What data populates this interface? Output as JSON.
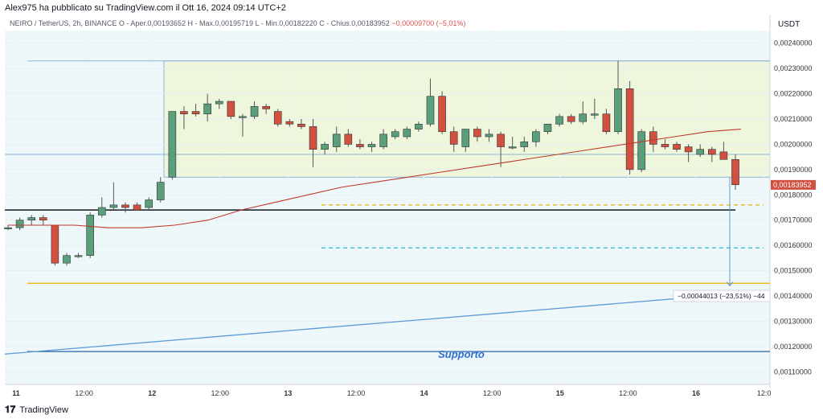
{
  "header": {
    "published_by": "Alex975 ha pubblicato su TradingView.com il Ott 16, 2024 09:14 UTC+2",
    "symbol": "NEIRO / TetherUS, 2h, BINANCE",
    "ohlc": "O - Aper.0,00193652  H - Max.0,00195719  L - Min.0,00182220  C - Chius.0,00183952",
    "change": "−0,00009700 (−5,01%)"
  },
  "price_axis": {
    "currency": "USDT",
    "labels": [
      "0,00240000",
      "0,00230000",
      "0,00220000",
      "0,00210000",
      "0,00200000",
      "0,00190000",
      "0,00180000",
      "0,00170000",
      "0,00160000",
      "0,00150000",
      "0,00140000",
      "0,00130000",
      "0,00120000",
      "0,00110000"
    ],
    "current_price": "0,00183952"
  },
  "time_axis": {
    "labels": [
      "11",
      "12:00",
      "12",
      "12:00",
      "13",
      "12:00",
      "14",
      "12:00",
      "15",
      "12:00",
      "16",
      "12:0"
    ]
  },
  "annotations": {
    "support_label": "Supporto",
    "measure_label": "−0,00044013 (−23,51%) −44"
  },
  "colors": {
    "up": "#5a9e7b",
    "down": "#d2503f",
    "ma": "#c0392b",
    "range_fill": "#eef7dc",
    "bg_fill": "#eef8fb"
  },
  "footer": {
    "brand": "TradingView"
  },
  "chart_data": {
    "type": "candlestick",
    "interval": "2h",
    "ylim": [
      0.00105,
      0.00245
    ],
    "candles": [
      {
        "o": 0.00167,
        "h": 0.00168,
        "l": 0.00166,
        "c": 0.00167
      },
      {
        "o": 0.00167,
        "h": 0.00171,
        "l": 0.00166,
        "c": 0.0017
      },
      {
        "o": 0.0017,
        "h": 0.00172,
        "l": 0.00168,
        "c": 0.00171
      },
      {
        "o": 0.00171,
        "h": 0.00172,
        "l": 0.00168,
        "c": 0.0017
      },
      {
        "o": 0.00168,
        "h": 0.00168,
        "l": 0.00152,
        "c": 0.00153
      },
      {
        "o": 0.00153,
        "h": 0.00157,
        "l": 0.00152,
        "c": 0.00156
      },
      {
        "o": 0.00156,
        "h": 0.00157,
        "l": 0.00155,
        "c": 0.00156
      },
      {
        "o": 0.00156,
        "h": 0.00173,
        "l": 0.00155,
        "c": 0.00172
      },
      {
        "o": 0.00172,
        "h": 0.00179,
        "l": 0.00171,
        "c": 0.00175
      },
      {
        "o": 0.00175,
        "h": 0.00185,
        "l": 0.00174,
        "c": 0.00176
      },
      {
        "o": 0.00176,
        "h": 0.00177,
        "l": 0.00173,
        "c": 0.00175
      },
      {
        "o": 0.00176,
        "h": 0.00177,
        "l": 0.00174,
        "c": 0.00174
      },
      {
        "o": 0.00175,
        "h": 0.00179,
        "l": 0.00174,
        "c": 0.00178
      },
      {
        "o": 0.00178,
        "h": 0.00187,
        "l": 0.00177,
        "c": 0.00185
      },
      {
        "o": 0.00187,
        "h": 0.00213,
        "l": 0.00186,
        "c": 0.00213
      },
      {
        "o": 0.00213,
        "h": 0.00215,
        "l": 0.00206,
        "c": 0.00212
      },
      {
        "o": 0.00213,
        "h": 0.00216,
        "l": 0.00211,
        "c": 0.00212
      },
      {
        "o": 0.00212,
        "h": 0.0022,
        "l": 0.00209,
        "c": 0.00216
      },
      {
        "o": 0.00216,
        "h": 0.00218,
        "l": 0.00214,
        "c": 0.00217
      },
      {
        "o": 0.00217,
        "h": 0.00217,
        "l": 0.0021,
        "c": 0.00211
      },
      {
        "o": 0.00211,
        "h": 0.00212,
        "l": 0.00203,
        "c": 0.00211
      },
      {
        "o": 0.00211,
        "h": 0.00217,
        "l": 0.0021,
        "c": 0.00215
      },
      {
        "o": 0.00215,
        "h": 0.00216,
        "l": 0.00212,
        "c": 0.00214
      },
      {
        "o": 0.00213,
        "h": 0.00214,
        "l": 0.00207,
        "c": 0.00208
      },
      {
        "o": 0.00209,
        "h": 0.0021,
        "l": 0.00207,
        "c": 0.00208
      },
      {
        "o": 0.00208,
        "h": 0.0021,
        "l": 0.00206,
        "c": 0.00207
      },
      {
        "o": 0.00207,
        "h": 0.0021,
        "l": 0.00191,
        "c": 0.00198
      },
      {
        "o": 0.00198,
        "h": 0.00201,
        "l": 0.00196,
        "c": 0.002
      },
      {
        "o": 0.00199,
        "h": 0.00207,
        "l": 0.00197,
        "c": 0.00204
      },
      {
        "o": 0.00204,
        "h": 0.00206,
        "l": 0.00199,
        "c": 0.002
      },
      {
        "o": 0.002,
        "h": 0.00202,
        "l": 0.00198,
        "c": 0.00199
      },
      {
        "o": 0.00199,
        "h": 0.00201,
        "l": 0.00197,
        "c": 0.002
      },
      {
        "o": 0.00199,
        "h": 0.00206,
        "l": 0.00198,
        "c": 0.00204
      },
      {
        "o": 0.00203,
        "h": 0.00206,
        "l": 0.00202,
        "c": 0.00205
      },
      {
        "o": 0.00203,
        "h": 0.00207,
        "l": 0.00202,
        "c": 0.00206
      },
      {
        "o": 0.00206,
        "h": 0.00209,
        "l": 0.00205,
        "c": 0.00208
      },
      {
        "o": 0.00208,
        "h": 0.00226,
        "l": 0.00207,
        "c": 0.00219
      },
      {
        "o": 0.00219,
        "h": 0.00221,
        "l": 0.00204,
        "c": 0.00205
      },
      {
        "o": 0.00205,
        "h": 0.00207,
        "l": 0.00197,
        "c": 0.002
      },
      {
        "o": 0.00199,
        "h": 0.00206,
        "l": 0.00197,
        "c": 0.00206
      },
      {
        "o": 0.00206,
        "h": 0.00207,
        "l": 0.00201,
        "c": 0.00203
      },
      {
        "o": 0.00203,
        "h": 0.00206,
        "l": 0.00201,
        "c": 0.00204
      },
      {
        "o": 0.00204,
        "h": 0.00205,
        "l": 0.00191,
        "c": 0.00199
      },
      {
        "o": 0.00199,
        "h": 0.00203,
        "l": 0.00198,
        "c": 0.00199
      },
      {
        "o": 0.00199,
        "h": 0.00203,
        "l": 0.00197,
        "c": 0.00201
      },
      {
        "o": 0.00201,
        "h": 0.00206,
        "l": 0.00199,
        "c": 0.00205
      },
      {
        "o": 0.00205,
        "h": 0.00208,
        "l": 0.00204,
        "c": 0.00208
      },
      {
        "o": 0.00208,
        "h": 0.00212,
        "l": 0.00207,
        "c": 0.00211
      },
      {
        "o": 0.00211,
        "h": 0.00212,
        "l": 0.00208,
        "c": 0.00209
      },
      {
        "o": 0.00209,
        "h": 0.00217,
        "l": 0.00208,
        "c": 0.00212
      },
      {
        "o": 0.00212,
        "h": 0.00218,
        "l": 0.0021,
        "c": 0.00212
      },
      {
        "o": 0.00212,
        "h": 0.00214,
        "l": 0.00204,
        "c": 0.00205
      },
      {
        "o": 0.00205,
        "h": 0.00233,
        "l": 0.00204,
        "c": 0.00222
      },
      {
        "o": 0.00222,
        "h": 0.00225,
        "l": 0.00188,
        "c": 0.0019
      },
      {
        "o": 0.0019,
        "h": 0.00206,
        "l": 0.00189,
        "c": 0.00205
      },
      {
        "o": 0.00205,
        "h": 0.00207,
        "l": 0.00197,
        "c": 0.002
      },
      {
        "o": 0.002,
        "h": 0.00202,
        "l": 0.00198,
        "c": 0.00199
      },
      {
        "o": 0.002,
        "h": 0.00201,
        "l": 0.00197,
        "c": 0.00198
      },
      {
        "o": 0.00199,
        "h": 0.002,
        "l": 0.00193,
        "c": 0.00197
      },
      {
        "o": 0.00196,
        "h": 0.002,
        "l": 0.00195,
        "c": 0.00198
      },
      {
        "o": 0.00198,
        "h": 0.00199,
        "l": 0.00193,
        "c": 0.00196
      },
      {
        "o": 0.00197,
        "h": 0.00201,
        "l": 0.00194,
        "c": 0.00194
      },
      {
        "o": 0.00194,
        "h": 0.00196,
        "l": 0.00182,
        "c": 0.00184
      }
    ],
    "moving_average": [
      0.00168,
      0.00168,
      0.00168,
      0.00167,
      0.00167,
      0.00168,
      0.0017,
      0.00174,
      0.00177,
      0.0018,
      0.00183,
      0.00185,
      0.00187,
      0.00189,
      0.00191,
      0.00193,
      0.00195,
      0.00197,
      0.00199,
      0.00201,
      0.00203,
      0.00205,
      0.00206
    ],
    "horizontal_lines": [
      {
        "price": 0.00174,
        "style": "solid",
        "color": "#131722"
      },
      {
        "price": 0.00145,
        "style": "solid",
        "color": "#f0b000"
      },
      {
        "price": 0.00176,
        "style": "dashed",
        "color": "#f0b000"
      },
      {
        "price": 0.00159,
        "style": "dashed",
        "color": "#26b5d4"
      },
      {
        "price": 0.00118,
        "style": "solid",
        "color": "#2962a8"
      }
    ],
    "range_box": {
      "top": 0.00233,
      "bottom": 0.00187
    },
    "trendline": {
      "from": 0.00117,
      "to": 0.00142
    }
  }
}
